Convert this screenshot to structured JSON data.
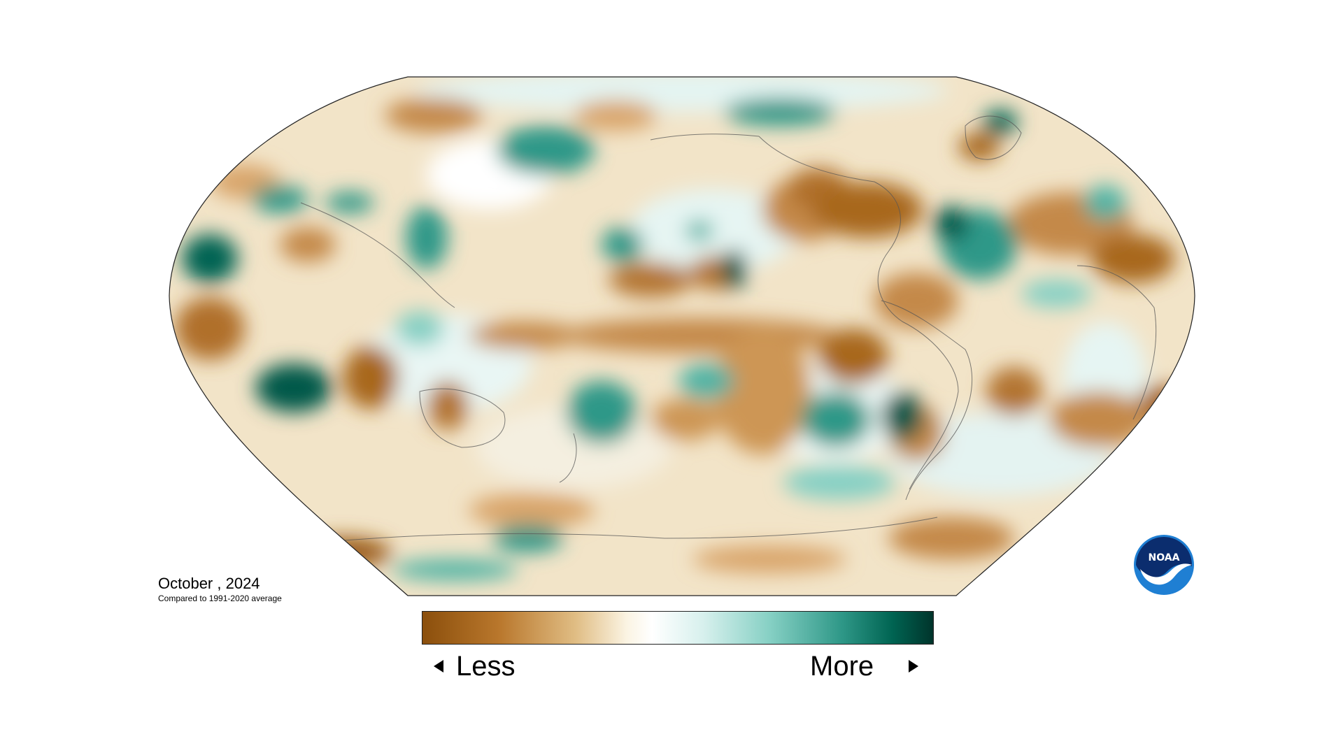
{
  "map": {
    "title": "October , 2024",
    "subtitle": "Compared to 1991-2020 average",
    "projection": "Robinson-style global map, Pacific-centered",
    "colors": {
      "dry_dark": "#9a5a12",
      "dry_mid": "#c4894a",
      "dry_light": "#e8cf9c",
      "neutral": "#ffffff",
      "wet_light": "#b9e3df",
      "wet_mid": "#4fb3a4",
      "wet_dark": "#00594a",
      "coastline": "#555555",
      "border": "#222222"
    }
  },
  "legend": {
    "less_label": "Less",
    "more_label": "More",
    "gradient": [
      "#8b4f0c",
      "#b9772c",
      "#e0bd84",
      "#fbf4e3",
      "#ffffff",
      "#d7f0ed",
      "#86d0c4",
      "#2f9888",
      "#006452",
      "#00342b"
    ]
  },
  "logo": {
    "text": "NOAA",
    "colors": {
      "outer": "#1f7fd3",
      "inner": "#0b2d6e",
      "bird": "#ffffff"
    }
  }
}
